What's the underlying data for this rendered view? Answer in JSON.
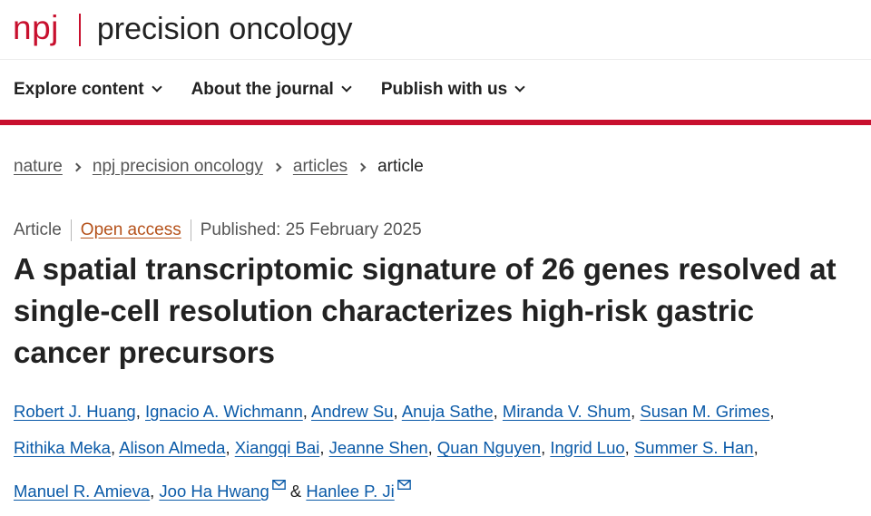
{
  "header": {
    "logo_brand": "npj",
    "journal_name": "precision oncology"
  },
  "nav": {
    "items": [
      {
        "label": "Explore content"
      },
      {
        "label": "About the journal"
      },
      {
        "label": "Publish with us"
      }
    ]
  },
  "breadcrumb": {
    "items": [
      "nature",
      "npj precision oncology",
      "articles"
    ],
    "current": "article"
  },
  "meta": {
    "type": "Article",
    "access": "Open access",
    "published": "Published: 25 February 2025"
  },
  "article": {
    "title": "A spatial transcriptomic signature of 26 genes resolved at single-cell resolution characterizes high-risk gastric cancer precursors"
  },
  "authors": {
    "list": [
      "Robert J. Huang",
      "Ignacio A. Wichmann",
      "Andrew Su",
      "Anuja Sathe",
      "Miranda V. Shum",
      "Susan M. Grimes",
      "Rithika Meka",
      "Alison Almeda",
      "Xiangqi Bai",
      "Jeanne Shen",
      "Quan Nguyen",
      "Ingrid Luo",
      "Summer S. Han",
      "Manuel R. Amieva",
      "Joo Ha Hwang",
      "Hanlee P. Ji"
    ],
    "separator": ",",
    "conjunction": "&",
    "icon": "mail-icon",
    "colors": {
      "link": "#0a5aa8",
      "accent": "#c8102e",
      "open_access": "#b5521b"
    }
  }
}
